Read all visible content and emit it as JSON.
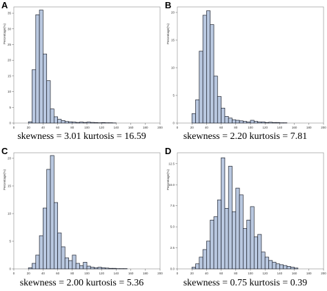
{
  "chart_data": [
    {
      "type": "bar",
      "panel_label": "A",
      "ylabel": "Percentage(%)",
      "xlim": [
        0,
        200
      ],
      "ylim": [
        0,
        37
      ],
      "xticks": [
        0,
        20,
        40,
        60,
        80,
        100,
        120,
        140,
        160,
        180,
        200
      ],
      "yticks": [
        0,
        5,
        10,
        15,
        20,
        25,
        30,
        35
      ],
      "bin_width": 5,
      "bin_starts": [
        20,
        25,
        30,
        35,
        40,
        45,
        50,
        55,
        60,
        65,
        70,
        75,
        80,
        85,
        90,
        95,
        100,
        105,
        110,
        115,
        120,
        125,
        130,
        135
      ],
      "values": [
        0.4,
        17,
        34.5,
        36,
        22,
        13.5,
        4.5,
        2,
        1.2,
        0.8,
        0.5,
        0.4,
        0.3,
        0.2,
        0.3,
        0.2,
        0.3,
        0.2,
        0.15,
        0.1,
        0.15,
        0.1,
        0.1,
        0.05
      ],
      "stats": "skewness = 3.01 kurtosis = 16.59"
    },
    {
      "type": "bar",
      "panel_label": "B",
      "ylabel": "Percentage(%)",
      "xlim": [
        0,
        200
      ],
      "ylim": [
        0,
        21
      ],
      "xticks": [
        0,
        20,
        40,
        60,
        80,
        100,
        120,
        140,
        160,
        180,
        200
      ],
      "yticks": [
        0,
        5,
        10,
        15,
        20
      ],
      "bin_width": 5,
      "bin_starts": [
        20,
        25,
        30,
        35,
        40,
        45,
        50,
        55,
        60,
        65,
        70,
        75,
        80,
        85,
        90,
        95,
        100,
        105,
        110,
        115,
        120,
        125,
        130,
        135,
        140,
        145
      ],
      "values": [
        1.7,
        4.2,
        13,
        19.5,
        20.3,
        17.8,
        8.5,
        4.8,
        2.7,
        1.2,
        0.9,
        0.6,
        0.5,
        0.4,
        0.3,
        0.2,
        0.5,
        0.3,
        0.2,
        0.2,
        0.1,
        0.15,
        0.1,
        0.1,
        0.05,
        0.05
      ],
      "stats": "skewness = 2.20 kurtosis = 7.81"
    },
    {
      "type": "bar",
      "panel_label": "C",
      "ylabel": "Percentage(%)",
      "xlim": [
        0,
        200
      ],
      "ylim": [
        0,
        21
      ],
      "xticks": [
        0,
        20,
        40,
        60,
        80,
        100,
        120,
        140,
        160,
        180,
        200
      ],
      "yticks": [
        0,
        5,
        10,
        15,
        20
      ],
      "bin_width": 5,
      "bin_starts": [
        20,
        25,
        30,
        35,
        40,
        45,
        50,
        55,
        60,
        65,
        70,
        75,
        80,
        85,
        90,
        95,
        100,
        105,
        110,
        115,
        120,
        125,
        130,
        135,
        140,
        145,
        150
      ],
      "values": [
        0.2,
        1,
        2.5,
        6,
        11,
        18,
        20.5,
        12,
        6.5,
        4,
        2,
        1.5,
        2.5,
        1,
        0.6,
        1.2,
        0.5,
        0.3,
        0.2,
        0.3,
        0.2,
        0.15,
        0.1,
        0.1,
        0.05,
        0.05,
        0.05
      ],
      "stats": "skewness = 2.00 kurtosis = 5.36"
    },
    {
      "type": "bar",
      "panel_label": "D",
      "ylabel": "Percentage(%)",
      "xlim": [
        0,
        200
      ],
      "ylim": [
        0,
        13.8
      ],
      "xticks": [
        0,
        20,
        40,
        60,
        80,
        100,
        120,
        140,
        160,
        180,
        200
      ],
      "yticks": [
        0,
        2.5,
        5,
        7.5,
        10,
        12.5
      ],
      "ytick_labels": [
        "0.0",
        "2.5",
        "5.0",
        "7.5",
        "10.0",
        "12.5"
      ],
      "bin_width": 5,
      "bin_starts": [
        20,
        25,
        30,
        35,
        40,
        45,
        50,
        55,
        60,
        65,
        70,
        75,
        80,
        85,
        90,
        95,
        100,
        105,
        110,
        115,
        120,
        125,
        130,
        135,
        140,
        145,
        150,
        155,
        160
      ],
      "values": [
        0.2,
        0.6,
        1.4,
        2.3,
        3.3,
        5.8,
        6.2,
        8.2,
        13.2,
        7.2,
        12.2,
        6.8,
        9.6,
        8.8,
        4.8,
        5.8,
        7.4,
        3.8,
        4.1,
        2,
        1.4,
        1,
        0.8,
        0.6,
        0.5,
        0.4,
        0.3,
        0.2,
        0.1
      ],
      "stats": "skewness = 0.75 kurtosis = 0.39"
    }
  ]
}
